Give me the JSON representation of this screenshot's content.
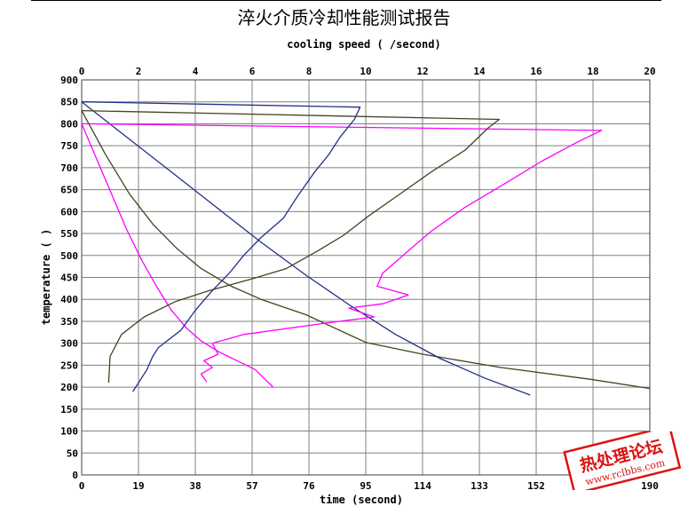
{
  "chart_data": {
    "type": "line",
    "title": "淬火介质冷却性能测试报告",
    "top_axis": {
      "label": "cooling speed  (  /second)",
      "range": [
        0,
        20
      ],
      "ticks": [
        "0",
        "2",
        "4",
        "6",
        "8",
        "10",
        "12",
        "14",
        "16",
        "18",
        "20"
      ]
    },
    "bottom_axis": {
      "label": "time (second)",
      "range": [
        0,
        190
      ],
      "ticks": [
        "0",
        "19",
        "38",
        "57",
        "76",
        "95",
        "114",
        "133",
        "152",
        "",
        "190"
      ]
    },
    "y_axis": {
      "label": "temperature  (  )",
      "range": [
        0,
        900
      ],
      "ticks": [
        "0",
        "50",
        "100",
        "150",
        "200",
        "250",
        "300",
        "350",
        "400",
        "450",
        "500",
        "550",
        "600",
        "650",
        "700",
        "750",
        "800",
        "850",
        "900"
      ]
    },
    "grid": true,
    "series": [
      {
        "kind": "cooling-curve",
        "axis": "time",
        "color": "#ff00ff",
        "points": [
          [
            0,
            800
          ],
          [
            5,
            720
          ],
          [
            10,
            640
          ],
          [
            15,
            560
          ],
          [
            20,
            490
          ],
          [
            25,
            430
          ],
          [
            30,
            375
          ],
          [
            35,
            335
          ],
          [
            40,
            305
          ],
          [
            46,
            280
          ],
          [
            52,
            260
          ],
          [
            58,
            240
          ],
          [
            64,
            200
          ]
        ]
      },
      {
        "kind": "cooling-curve",
        "axis": "time",
        "color": "#40451f",
        "points": [
          [
            0,
            830
          ],
          [
            8,
            730
          ],
          [
            16,
            640
          ],
          [
            24,
            570
          ],
          [
            32,
            515
          ],
          [
            40,
            470
          ],
          [
            50,
            430
          ],
          [
            60,
            400
          ],
          [
            75,
            365
          ],
          [
            95,
            302
          ],
          [
            114,
            275
          ],
          [
            140,
            245
          ],
          [
            170,
            218
          ],
          [
            190,
            197
          ]
        ]
      },
      {
        "kind": "cooling-curve",
        "axis": "time",
        "color": "#1f3088",
        "points": [
          [
            0,
            850
          ],
          [
            15,
            770
          ],
          [
            30,
            690
          ],
          [
            45,
            610
          ],
          [
            60,
            530
          ],
          [
            75,
            455
          ],
          [
            90,
            385
          ],
          [
            105,
            320
          ],
          [
            120,
            265
          ],
          [
            135,
            220
          ],
          [
            150,
            182
          ]
        ]
      },
      {
        "kind": "cooling-rate",
        "axis": "speed",
        "color": "#ff00ff",
        "points": [
          [
            0,
            800
          ],
          [
            18.3,
            785
          ],
          [
            17.5,
            760
          ],
          [
            16.2,
            715
          ],
          [
            14.8,
            660
          ],
          [
            13.5,
            610
          ],
          [
            12.3,
            555
          ],
          [
            11.4,
            505
          ],
          [
            10.6,
            460
          ],
          [
            10.4,
            430
          ],
          [
            11.5,
            410
          ],
          [
            10.6,
            390
          ],
          [
            9.4,
            380
          ],
          [
            10.3,
            360
          ],
          [
            8.5,
            345
          ],
          [
            5.7,
            320
          ],
          [
            4.6,
            300
          ],
          [
            4.8,
            275
          ],
          [
            4.3,
            260
          ],
          [
            4.6,
            245
          ],
          [
            4.2,
            230
          ],
          [
            4.4,
            212
          ]
        ]
      },
      {
        "kind": "cooling-rate",
        "axis": "speed",
        "color": "#40451f",
        "points": [
          [
            0,
            830
          ],
          [
            14.7,
            810
          ],
          [
            14.3,
            790
          ],
          [
            13.5,
            740
          ],
          [
            12.3,
            690
          ],
          [
            11.2,
            640
          ],
          [
            10.1,
            590
          ],
          [
            9.2,
            545
          ],
          [
            8.3,
            510
          ],
          [
            7.2,
            470
          ],
          [
            5.9,
            445
          ],
          [
            4.5,
            420
          ],
          [
            3.3,
            395
          ],
          [
            2.2,
            360
          ],
          [
            1.4,
            320
          ],
          [
            1.0,
            270
          ],
          [
            0.95,
            210
          ]
        ]
      },
      {
        "kind": "cooling-rate",
        "axis": "speed",
        "color": "#1f3088",
        "points": [
          [
            0,
            850
          ],
          [
            9.8,
            838
          ],
          [
            9.6,
            810
          ],
          [
            9.1,
            770
          ],
          [
            8.7,
            730
          ],
          [
            8.2,
            690
          ],
          [
            7.6,
            635
          ],
          [
            7.1,
            585
          ],
          [
            6.3,
            540
          ],
          [
            5.7,
            500
          ],
          [
            5.2,
            460
          ],
          [
            4.6,
            420
          ],
          [
            4.0,
            375
          ],
          [
            3.5,
            330
          ],
          [
            2.7,
            290
          ],
          [
            2.5,
            270
          ],
          [
            2.3,
            240
          ],
          [
            1.8,
            190
          ]
        ]
      }
    ]
  },
  "watermark": {
    "brand": "热处理论坛",
    "url": "www.rclbbs.com"
  }
}
